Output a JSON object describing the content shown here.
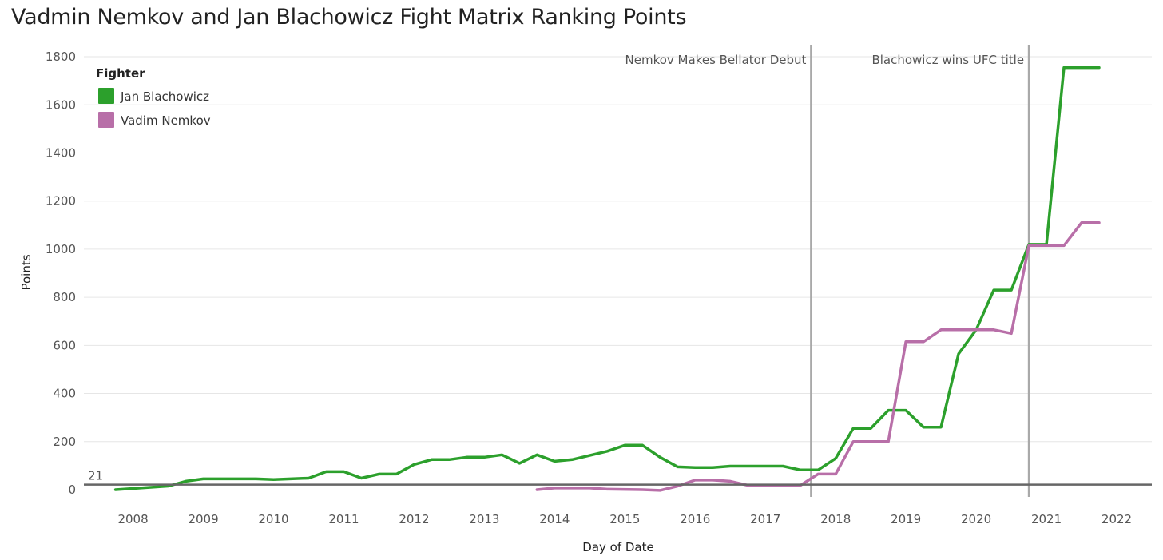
{
  "title": "Vadmin Nemkov and Jan Blachowicz Fight Matrix Ranking Points",
  "chart_data": {
    "type": "line",
    "xlabel": "Day of Date",
    "ylabel": "Points",
    "xlim": [
      2007.3,
      2022.5
    ],
    "ylim": [
      -30,
      1850
    ],
    "y_ticks": [
      0,
      200,
      400,
      600,
      800,
      1000,
      1200,
      1400,
      1600,
      1800
    ],
    "x_ticks": [
      "2008",
      "2009",
      "2010",
      "2011",
      "2012",
      "2013",
      "2014",
      "2015",
      "2016",
      "2017",
      "2018",
      "2019",
      "2020",
      "2021",
      "2022"
    ],
    "grid": "horizontal",
    "legend": {
      "title": "Fighter",
      "position": "top-left",
      "entries": [
        "Jan Blachowicz",
        "Vadim Nemkov"
      ]
    },
    "reference_lines": [
      {
        "x": 2017.65,
        "label": "Nemkov Makes Bellator Debut"
      },
      {
        "x": 2020.75,
        "label": "Blachowicz wins UFC title"
      }
    ],
    "baseline": {
      "y": 21,
      "label": "21"
    },
    "series": [
      {
        "name": "Jan Blachowicz",
        "color": "#2ca02c",
        "points": [
          [
            2007.75,
            0
          ],
          [
            2008.5,
            15
          ],
          [
            2008.75,
            35
          ],
          [
            2009.0,
            45
          ],
          [
            2009.75,
            45
          ],
          [
            2010.0,
            42
          ],
          [
            2010.5,
            48
          ],
          [
            2010.75,
            75
          ],
          [
            2011.0,
            75
          ],
          [
            2011.25,
            48
          ],
          [
            2011.5,
            65
          ],
          [
            2011.75,
            65
          ],
          [
            2012.0,
            105
          ],
          [
            2012.25,
            125
          ],
          [
            2012.5,
            125
          ],
          [
            2012.75,
            135
          ],
          [
            2013.0,
            135
          ],
          [
            2013.25,
            145
          ],
          [
            2013.5,
            110
          ],
          [
            2013.75,
            145
          ],
          [
            2014.0,
            118
          ],
          [
            2014.25,
            125
          ],
          [
            2014.75,
            160
          ],
          [
            2015.0,
            185
          ],
          [
            2015.25,
            185
          ],
          [
            2015.5,
            135
          ],
          [
            2015.75,
            95
          ],
          [
            2016.0,
            92
          ],
          [
            2016.25,
            92
          ],
          [
            2016.5,
            98
          ],
          [
            2017.25,
            98
          ],
          [
            2017.5,
            82
          ],
          [
            2017.75,
            82
          ],
          [
            2018.0,
            130
          ],
          [
            2018.25,
            255
          ],
          [
            2018.5,
            255
          ],
          [
            2018.75,
            330
          ],
          [
            2019.0,
            330
          ],
          [
            2019.25,
            260
          ],
          [
            2019.5,
            260
          ],
          [
            2019.75,
            565
          ],
          [
            2020.0,
            665
          ],
          [
            2020.25,
            830
          ],
          [
            2020.5,
            830
          ],
          [
            2020.75,
            1020
          ],
          [
            2021.0,
            1020
          ],
          [
            2021.25,
            1755
          ],
          [
            2021.75,
            1755
          ]
        ]
      },
      {
        "name": "Vadim Nemkov",
        "color": "#b86fa8",
        "points": [
          [
            2013.75,
            0
          ],
          [
            2014.0,
            7
          ],
          [
            2014.5,
            7
          ],
          [
            2014.75,
            2
          ],
          [
            2015.25,
            0
          ],
          [
            2015.5,
            -3
          ],
          [
            2015.75,
            15
          ],
          [
            2016.0,
            40
          ],
          [
            2016.25,
            40
          ],
          [
            2016.5,
            35
          ],
          [
            2016.75,
            18
          ],
          [
            2017.5,
            18
          ],
          [
            2017.75,
            65
          ],
          [
            2018.0,
            65
          ],
          [
            2018.25,
            200
          ],
          [
            2018.75,
            200
          ],
          [
            2019.0,
            615
          ],
          [
            2019.25,
            615
          ],
          [
            2019.5,
            665
          ],
          [
            2020.25,
            665
          ],
          [
            2020.5,
            650
          ],
          [
            2020.75,
            1015
          ],
          [
            2021.25,
            1015
          ],
          [
            2021.5,
            1110
          ],
          [
            2021.75,
            1110
          ]
        ]
      }
    ]
  }
}
